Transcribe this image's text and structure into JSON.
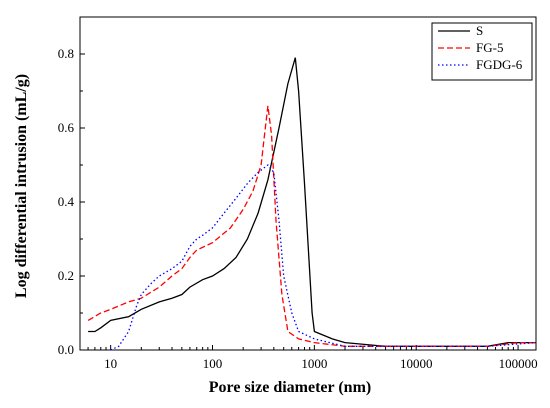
{
  "chart_data": {
    "type": "line",
    "title": "",
    "xlabel": "Pore size diameter (nm)",
    "ylabel": "Log differential intrusion (mL/g)",
    "xscale": "log",
    "xlim": [
      5,
      150000
    ],
    "ylim": [
      0,
      0.9
    ],
    "x_ticks": [
      10,
      100,
      1000,
      10000,
      100000
    ],
    "x_tick_labels": [
      "10",
      "100",
      "1000",
      "10000",
      "100000"
    ],
    "y_ticks": [
      0.0,
      0.2,
      0.4,
      0.6,
      0.8
    ],
    "y_tick_labels": [
      "0.0",
      "0.2",
      "0.4",
      "0.6",
      "0.8"
    ],
    "grid": false,
    "legend_position": "top-right",
    "series": [
      {
        "name": "S",
        "color": "#000000",
        "style": "solid",
        "points": [
          [
            6,
            0.05
          ],
          [
            7,
            0.05
          ],
          [
            8,
            0.06
          ],
          [
            10,
            0.08
          ],
          [
            15,
            0.09
          ],
          [
            20,
            0.11
          ],
          [
            30,
            0.13
          ],
          [
            40,
            0.14
          ],
          [
            50,
            0.15
          ],
          [
            60,
            0.17
          ],
          [
            80,
            0.19
          ],
          [
            100,
            0.2
          ],
          [
            130,
            0.22
          ],
          [
            170,
            0.25
          ],
          [
            220,
            0.3
          ],
          [
            280,
            0.37
          ],
          [
            350,
            0.46
          ],
          [
            450,
            0.6
          ],
          [
            550,
            0.72
          ],
          [
            650,
            0.79
          ],
          [
            700,
            0.7
          ],
          [
            800,
            0.45
          ],
          [
            950,
            0.1
          ],
          [
            1000,
            0.05
          ],
          [
            1500,
            0.03
          ],
          [
            2000,
            0.02
          ],
          [
            5000,
            0.01
          ],
          [
            10000,
            0.01
          ],
          [
            50000,
            0.01
          ],
          [
            80000,
            0.02
          ],
          [
            150000,
            0.02
          ]
        ]
      },
      {
        "name": "FG-5",
        "color": "#ff0000",
        "style": "dashed",
        "points": [
          [
            6,
            0.08
          ],
          [
            8,
            0.1
          ],
          [
            10,
            0.11
          ],
          [
            15,
            0.13
          ],
          [
            20,
            0.14
          ],
          [
            30,
            0.17
          ],
          [
            40,
            0.2
          ],
          [
            50,
            0.22
          ],
          [
            60,
            0.25
          ],
          [
            70,
            0.27
          ],
          [
            100,
            0.29
          ],
          [
            150,
            0.33
          ],
          [
            200,
            0.38
          ],
          [
            250,
            0.43
          ],
          [
            300,
            0.5
          ],
          [
            330,
            0.6
          ],
          [
            350,
            0.66
          ],
          [
            380,
            0.58
          ],
          [
            420,
            0.35
          ],
          [
            480,
            0.15
          ],
          [
            550,
            0.05
          ],
          [
            700,
            0.03
          ],
          [
            1000,
            0.02
          ],
          [
            2000,
            0.01
          ],
          [
            10000,
            0.01
          ],
          [
            50000,
            0.01
          ],
          [
            100000,
            0.02
          ],
          [
            150000,
            0.02
          ]
        ]
      },
      {
        "name": "FGDG-6",
        "color": "#0000ff",
        "style": "dotted",
        "points": [
          [
            10,
            0.0
          ],
          [
            12,
            0.01
          ],
          [
            15,
            0.05
          ],
          [
            18,
            0.12
          ],
          [
            20,
            0.15
          ],
          [
            25,
            0.18
          ],
          [
            30,
            0.2
          ],
          [
            40,
            0.22
          ],
          [
            50,
            0.24
          ],
          [
            60,
            0.28
          ],
          [
            70,
            0.3
          ],
          [
            80,
            0.31
          ],
          [
            100,
            0.33
          ],
          [
            130,
            0.37
          ],
          [
            170,
            0.41
          ],
          [
            220,
            0.45
          ],
          [
            280,
            0.48
          ],
          [
            350,
            0.5
          ],
          [
            400,
            0.48
          ],
          [
            450,
            0.35
          ],
          [
            500,
            0.2
          ],
          [
            600,
            0.1
          ],
          [
            700,
            0.05
          ],
          [
            1000,
            0.03
          ],
          [
            2000,
            0.01
          ],
          [
            10000,
            0.01
          ],
          [
            50000,
            0.01
          ],
          [
            150000,
            0.02
          ]
        ]
      }
    ]
  }
}
